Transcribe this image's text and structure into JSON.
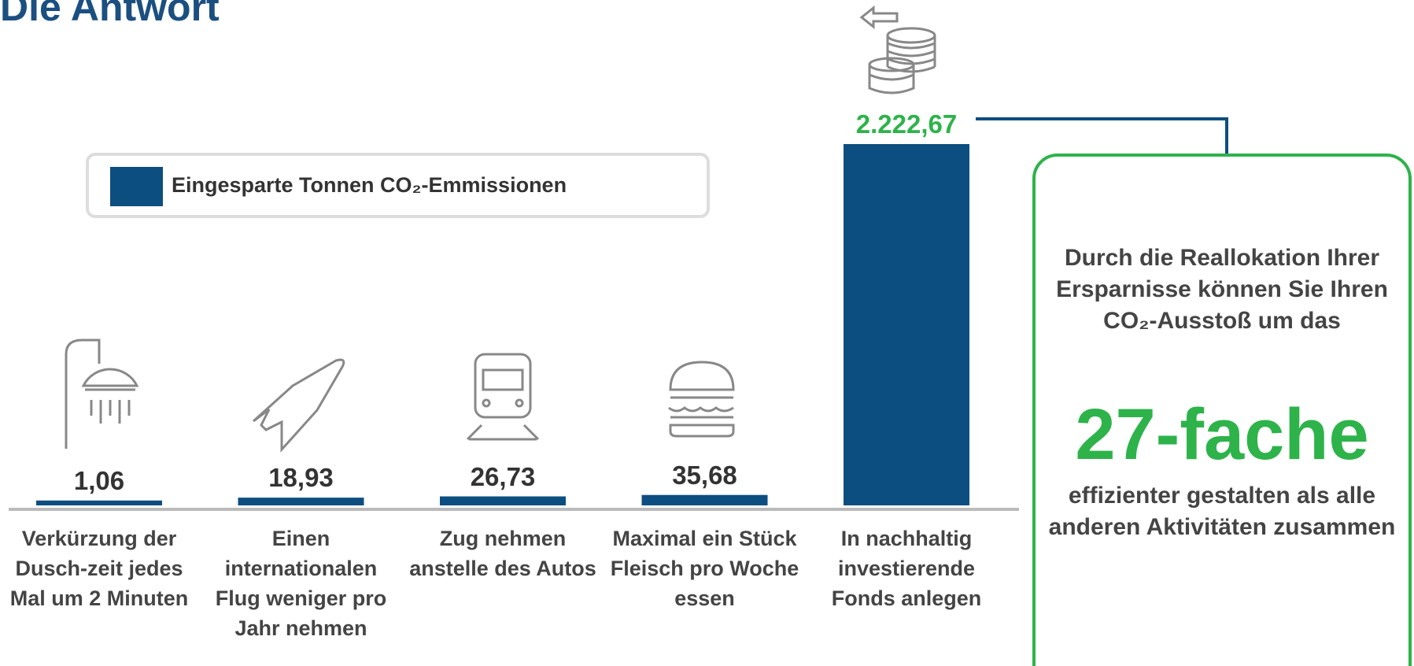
{
  "chart_data": {
    "type": "bar",
    "title": "Die Antwort",
    "categories": [
      "Verkürzung der Dusch-zeit jedes Mal um 2 Minuten",
      "Einen internationalen Flug weniger pro Jahr nehmen",
      "Zug nehmen anstelle des Autos",
      "Maximal ein Stück Fleisch pro Woche essen",
      "In nachhaltig investierende Fonds anlegen"
    ],
    "series": [
      {
        "name": "Eingesparte Tonnen CO₂-Emmissionen",
        "color": "#0d4e80",
        "values": [
          1.06,
          18.93,
          26.73,
          35.68,
          2222.67
        ]
      }
    ],
    "value_labels": [
      "1,06",
      "18,93",
      "26,73",
      "35,68",
      "2.222,67"
    ],
    "highlight_color": "#2db34a",
    "callout": {
      "text_before": "Durch die Reallokation Ihrer Ersparnisse können Sie Ihren CO₂-Ausstoß um das",
      "highlight": "27-fache",
      "text_after": "effizienter  gestalten als alle anderen Aktivitäten zusammen"
    }
  }
}
